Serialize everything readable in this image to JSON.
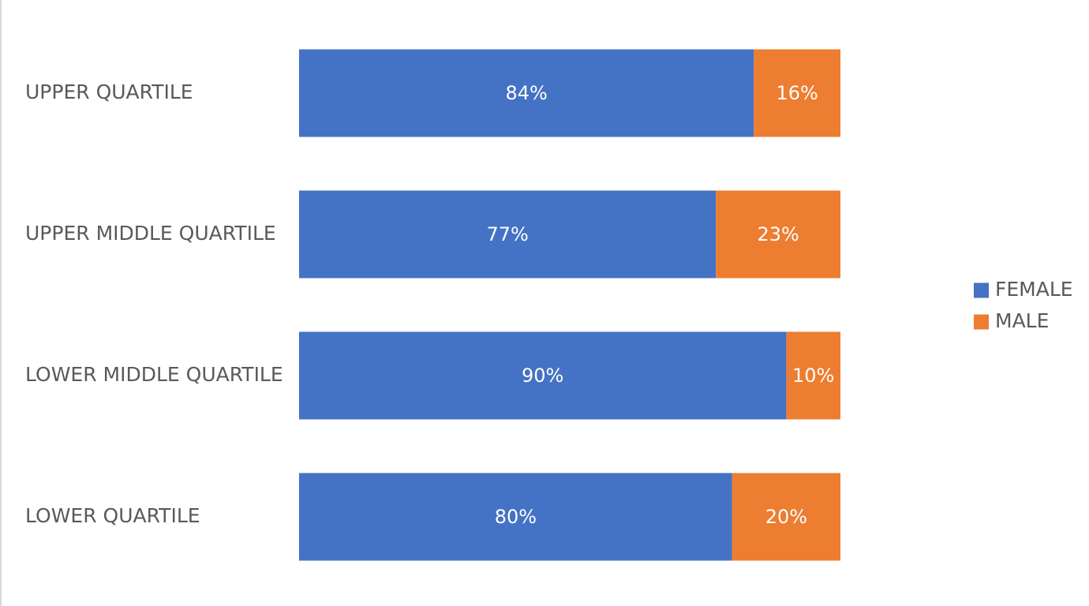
{
  "chart_data": {
    "type": "bar",
    "orientation": "horizontal",
    "stacked": true,
    "percent_stacked": true,
    "categories": [
      "UPPER QUARTILE",
      "UPPER MIDDLE QUARTILE",
      "LOWER MIDDLE QUARTILE",
      "LOWER QUARTILE"
    ],
    "series": [
      {
        "name": "FEMALE",
        "color": "#4472C4",
        "values": [
          84,
          77,
          90,
          80
        ],
        "labels": [
          "84%",
          "77%",
          "90%",
          "80%"
        ]
      },
      {
        "name": "MALE",
        "color": "#ED7D31",
        "values": [
          16,
          23,
          10,
          20
        ],
        "labels": [
          "16%",
          "23%",
          "10%",
          "20%"
        ]
      }
    ],
    "title": "",
    "xlabel": "",
    "ylabel": "",
    "xlim": [
      0,
      100
    ],
    "grid": false,
    "legend_position": "right"
  }
}
